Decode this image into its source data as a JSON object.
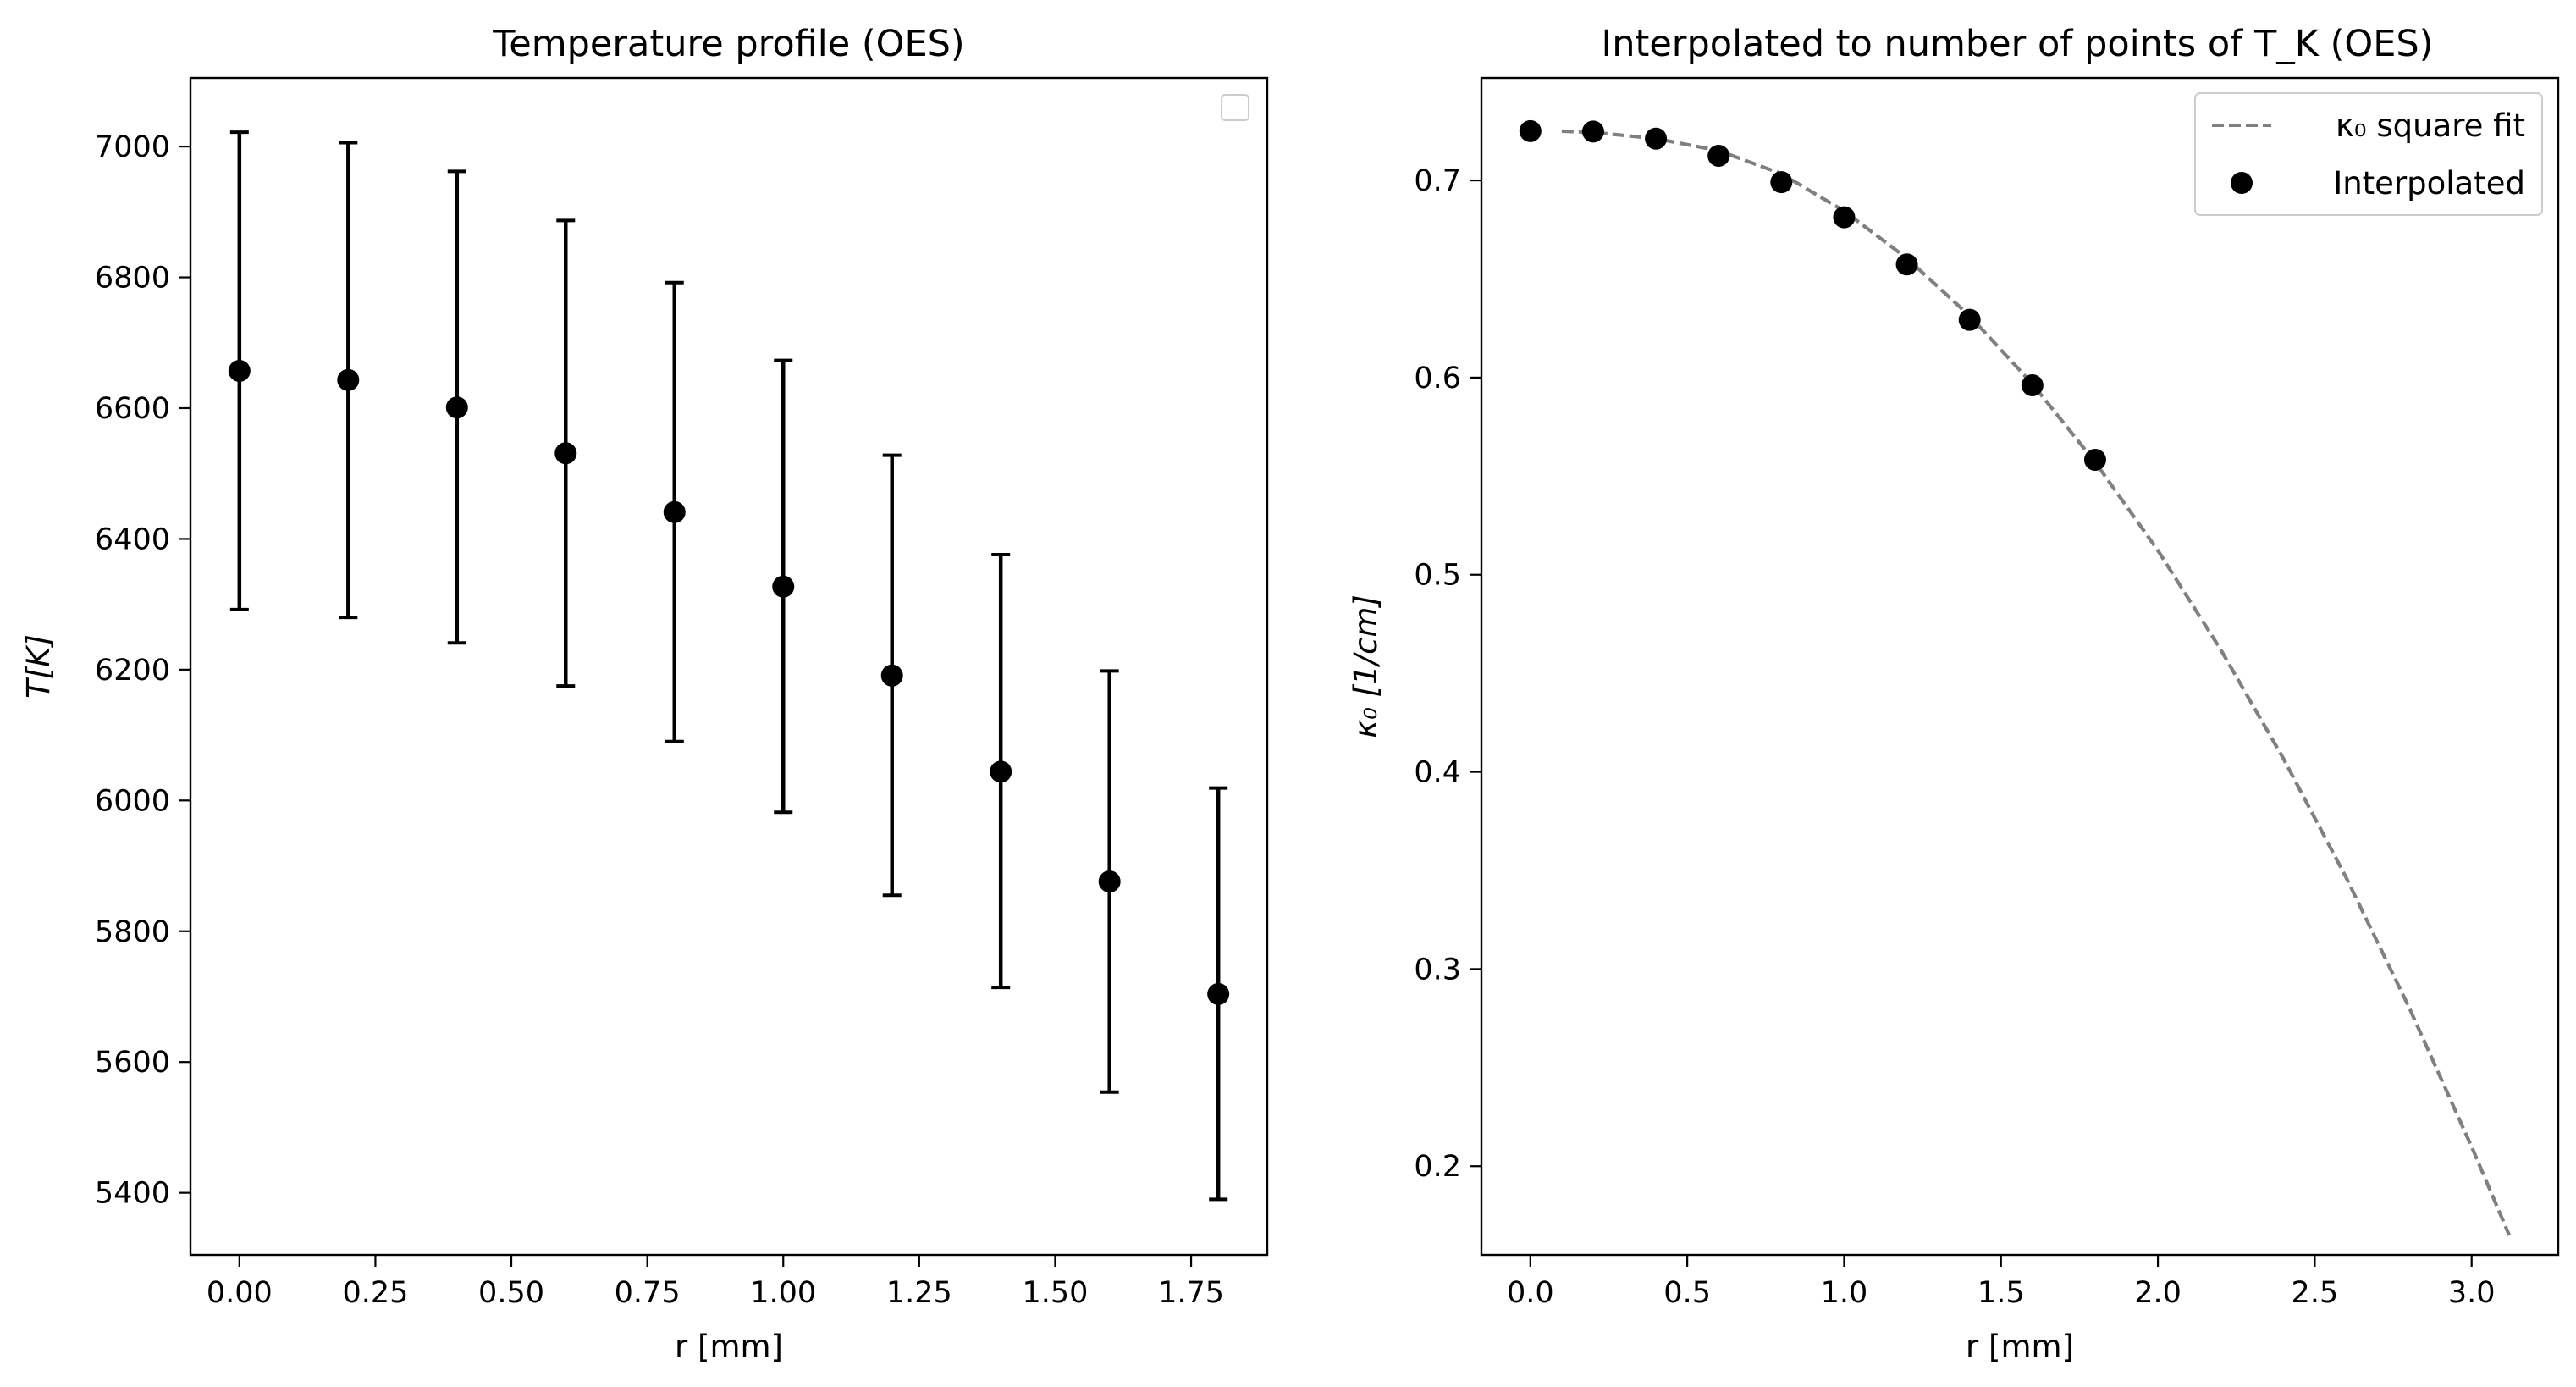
{
  "chart_data": [
    {
      "type": "scatter",
      "title": "Temperature profile (OES)",
      "xlabel": "r [mm]",
      "ylabel": "T[K]",
      "xlim": [
        -0.09,
        1.89
      ],
      "ylim": [
        5305,
        7105
      ],
      "xticks": [
        "0.00",
        "0.25",
        "0.50",
        "0.75",
        "1.00",
        "1.25",
        "1.50",
        "1.75"
      ],
      "yticks": [
        "5400",
        "5600",
        "5800",
        "6000",
        "6200",
        "6400",
        "6600",
        "6800",
        "7000"
      ],
      "legend": "upper right, empty",
      "series": [
        {
          "x": [
            0.0,
            0.2,
            0.4,
            0.6,
            0.8,
            1.0,
            1.2,
            1.4,
            1.6,
            1.8
          ],
          "y": [
            6657,
            6643,
            6601,
            6531,
            6441,
            6327,
            6191,
            6044,
            5876,
            5704
          ],
          "err_low": [
            6292,
            6280,
            6241,
            6175,
            6090,
            5982,
            5855,
            5714,
            5554,
            5390
          ],
          "err_high": [
            7022,
            7006,
            6962,
            6887,
            6792,
            6673,
            6528,
            6376,
            6198,
            6019
          ],
          "color": "#000000"
        }
      ]
    },
    {
      "type": "line",
      "title": "Interpolated to number of points of T_K (OES)",
      "xlabel": "r [mm]",
      "ylabel": "κ₀ [1/cm]",
      "xlim": [
        -0.156,
        3.276
      ],
      "ylim": [
        0.155,
        0.752
      ],
      "xticks": [
        "0.0",
        "0.5",
        "1.0",
        "1.5",
        "2.0",
        "2.5",
        "3.0"
      ],
      "yticks": [
        "0.2",
        "0.3",
        "0.4",
        "0.5",
        "0.6",
        "0.7"
      ],
      "legend_position": "upper right",
      "series": [
        {
          "name": "κ₀ square fit",
          "style": "dashed",
          "color": "#808080",
          "x": [
            0.1,
            0.2,
            0.4,
            0.6,
            0.8,
            1.0,
            1.2,
            1.4,
            1.6,
            1.8,
            2.0,
            2.2,
            2.4,
            2.6,
            2.8,
            3.0,
            3.12
          ],
          "y": [
            0.725,
            0.7244,
            0.7212,
            0.7151,
            0.7034,
            0.6845,
            0.6605,
            0.6313,
            0.5968,
            0.5571,
            0.5123,
            0.4621,
            0.4068,
            0.3464,
            0.2807,
            0.2099,
            0.1649
          ]
        },
        {
          "name": "Interpolated",
          "style": "markers",
          "color": "#000000",
          "x": [
            0.0,
            0.2,
            0.4,
            0.6,
            0.8,
            1.0,
            1.2,
            1.4,
            1.6,
            1.8
          ],
          "y": [
            0.725,
            0.7248,
            0.7212,
            0.7125,
            0.6991,
            0.6813,
            0.6574,
            0.6293,
            0.5961,
            0.5583
          ]
        }
      ]
    }
  ]
}
